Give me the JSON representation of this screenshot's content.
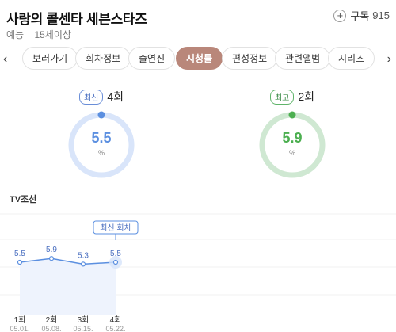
{
  "header": {
    "title": "사랑의 콜센타 세븐스타즈",
    "genre": "예능",
    "rating": "15세이상",
    "subscribe_label": "구독",
    "subscribe_count": "915"
  },
  "tabs": [
    {
      "label": "보러가기",
      "active": false
    },
    {
      "label": "회차정보",
      "active": false
    },
    {
      "label": "출연진",
      "active": false
    },
    {
      "label": "시청률",
      "active": true
    },
    {
      "label": "편성정보",
      "active": false
    },
    {
      "label": "관련앨범",
      "active": false
    },
    {
      "label": "시리즈",
      "active": false
    }
  ],
  "latest": {
    "badge": "최신",
    "episode": "4회",
    "value": "5.5",
    "unit": "%",
    "color": "#5b8fe0",
    "track": "#d9e5fa"
  },
  "best": {
    "badge": "최고",
    "episode": "2회",
    "value": "5.9",
    "unit": "%",
    "color": "#4caf50",
    "track": "#cfe8d2"
  },
  "section_label": "TV조선",
  "chart_data": {
    "type": "line",
    "categories": [
      "1회",
      "2회",
      "3회",
      "4회"
    ],
    "dates": [
      "05.01.",
      "05.08.",
      "05.15.",
      "05.22."
    ],
    "values": [
      5.5,
      5.9,
      5.3,
      5.5
    ],
    "value_labels": [
      "5.5",
      "5.9",
      "5.3",
      "5.5"
    ],
    "annotation": "최신 회차",
    "annotation_index": 3,
    "ylim": [
      0,
      10
    ],
    "grid": true,
    "line_color": "#5b8fe0",
    "fill_color": "#eef3fd"
  }
}
